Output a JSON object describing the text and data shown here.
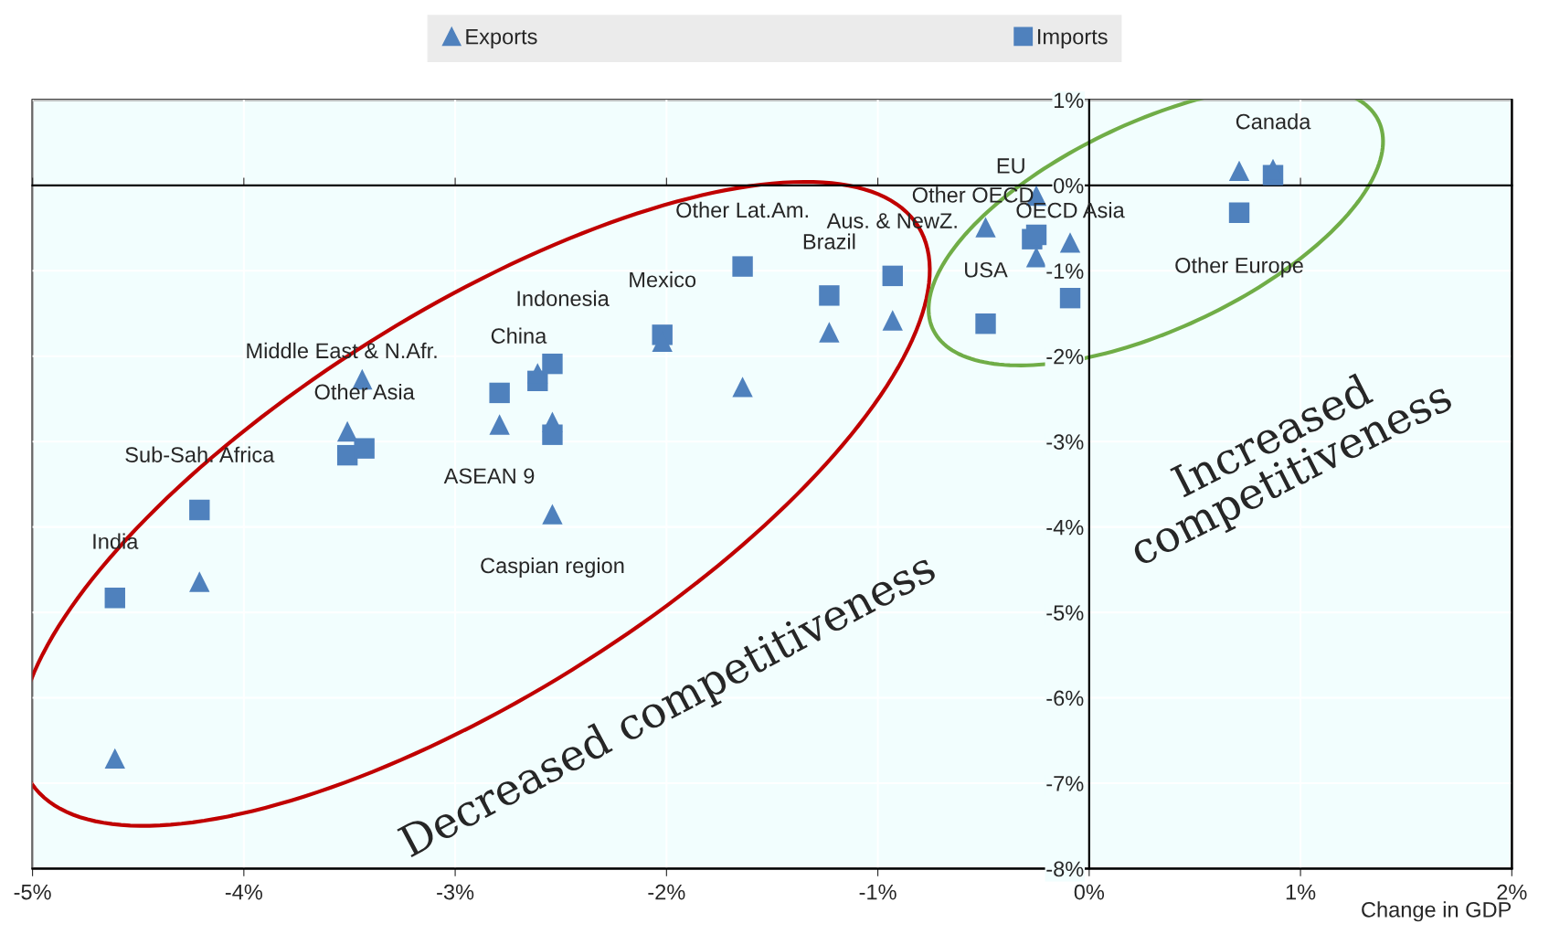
{
  "chart_data": {
    "type": "scatter",
    "xlabel": "Change in GDP",
    "series": [
      {
        "name": "Exports",
        "color": "#4f81bd",
        "marker": "triangle",
        "x": [
          -4.61,
          -4.21,
          -3.51,
          -3.44,
          -2.79,
          -2.61,
          -2.54,
          -2.54,
          -2.02,
          -1.64,
          -1.23,
          -0.93,
          -0.49,
          -0.25,
          -0.25,
          -0.09,
          0.71,
          0.87
        ],
        "values": [
          -6.71,
          -4.64,
          -2.88,
          -2.27,
          -2.8,
          -2.2,
          -2.77,
          -3.85,
          -1.83,
          -2.36,
          -1.72,
          -1.58,
          -0.49,
          -0.12,
          -0.84,
          -0.67,
          0.17,
          0.19
        ]
      },
      {
        "name": "Imports",
        "color": "#4f81bd",
        "marker": "square",
        "x": [
          -4.61,
          -4.21,
          -3.51,
          -3.43,
          -2.79,
          -2.61,
          -2.54,
          -2.54,
          -2.02,
          -1.64,
          -1.23,
          -0.93,
          -0.49,
          -0.27,
          -0.25,
          -0.09,
          0.71,
          0.87
        ],
        "values": [
          -4.83,
          -3.8,
          -3.16,
          -3.08,
          -2.43,
          -2.29,
          -2.09,
          -2.92,
          -1.75,
          -0.95,
          -1.29,
          -1.06,
          -1.62,
          -0.63,
          -0.58,
          -1.32,
          -0.32,
          0.12
        ]
      }
    ],
    "xlim": [
      -5,
      2
    ],
    "ylim": [
      -8,
      1
    ],
    "xticks": [
      {
        "value": -5,
        "label": "-5%"
      },
      {
        "value": -4,
        "label": "-4%"
      },
      {
        "value": -3,
        "label": "-3%"
      },
      {
        "value": -2,
        "label": "-2%"
      },
      {
        "value": -1,
        "label": "-1%"
      },
      {
        "value": 0,
        "label": "0%"
      },
      {
        "value": 1,
        "label": "1%"
      },
      {
        "value": 2,
        "label": "2%"
      }
    ],
    "yticks": [
      {
        "value": 1,
        "label": "1%"
      },
      {
        "value": 0,
        "label": "0%"
      },
      {
        "value": -1,
        "label": "-1%"
      },
      {
        "value": -2,
        "label": "-2%"
      },
      {
        "value": -3,
        "label": "-3%"
      },
      {
        "value": -4,
        "label": "-4%"
      },
      {
        "value": -5,
        "label": "-5%"
      },
      {
        "value": -6,
        "label": "-6%"
      },
      {
        "value": -7,
        "label": "-7%"
      },
      {
        "value": -8,
        "label": "-8%"
      }
    ],
    "grid": true,
    "legend": "top",
    "annotations": [
      {
        "text": "Canada",
        "x": 0.87,
        "y": 0.16
      },
      {
        "text": "Other Europe",
        "x": 0.71,
        "y": -0.32
      },
      {
        "text": "EU",
        "x": -0.25,
        "y": -0.12
      },
      {
        "text": "Other OECD",
        "x": -0.25,
        "y": -0.58
      },
      {
        "text": "OECD Asia",
        "x": -0.09,
        "y": -0.67
      },
      {
        "text": "USA",
        "x": -0.49,
        "y": -1.62
      },
      {
        "text": "Aus. & NewZ.",
        "x": -0.93,
        "y": -1.06
      },
      {
        "text": "Brazil",
        "x": -1.23,
        "y": -1.29
      },
      {
        "text": "Other Lat.Am.",
        "x": -1.64,
        "y": -0.95
      },
      {
        "text": "Mexico",
        "x": -2.02,
        "y": -1.75
      },
      {
        "text": "Indonesia",
        "x": -2.54,
        "y": -2.09
      },
      {
        "text": "China",
        "x": -2.61,
        "y": -2.29
      },
      {
        "text": "Middle East & N.Afr.",
        "x": -3.44,
        "y": -2.27
      },
      {
        "text": "Other Asia",
        "x": -3.43,
        "y": -3.08
      },
      {
        "text": "ASEAN 9",
        "x": -2.79,
        "y": -2.8
      },
      {
        "text": "Sub-Sah. Africa",
        "x": -4.21,
        "y": -3.8
      },
      {
        "text": "Caspian region",
        "x": -2.54,
        "y": -3.85
      },
      {
        "text": "India",
        "x": -4.61,
        "y": -4.83
      },
      "Decreased competitiveness",
      "Increased\ncompetitiveness"
    ]
  }
}
